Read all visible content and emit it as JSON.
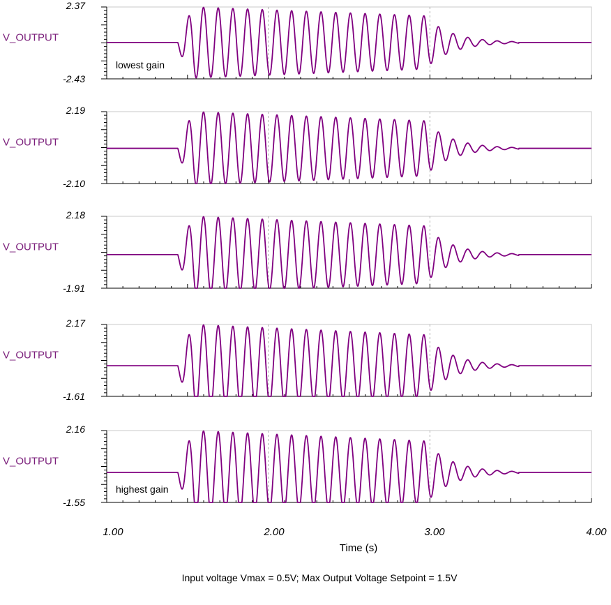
{
  "chart_data": {
    "type": "line",
    "xlabel": "Time (s)",
    "xlim": [
      1.0,
      4.0
    ],
    "x_ticks": [
      "1.00",
      "2.00",
      "3.00",
      "4.00"
    ],
    "grid": "vertical dashed at 2.00 and 3.00",
    "line_color": "#800080",
    "panels": [
      {
        "ylabel": "V_OUTPUT",
        "ymax": 2.37,
        "ymin": -2.43,
        "ymax_label": "2.37",
        "ymin_label": "-2.43",
        "annotation": "lowest gain",
        "burst_start": 1.44,
        "burst_end": 2.97,
        "peak_amplitude": 2.37,
        "settle_by": 3.45
      },
      {
        "ylabel": "V_OUTPUT",
        "ymax": 2.19,
        "ymin": -2.1,
        "ymax_label": "2.19",
        "ymin_label": "-2.10",
        "annotation": "",
        "burst_start": 1.44,
        "burst_end": 2.97,
        "peak_amplitude": 2.19,
        "settle_by": 3.45
      },
      {
        "ylabel": "V_OUTPUT",
        "ymax": 2.18,
        "ymin": -1.91,
        "ymax_label": "2.18",
        "ymin_label": "-1.91",
        "annotation": "",
        "burst_start": 1.44,
        "burst_end": 2.97,
        "peak_amplitude": 2.18,
        "settle_by": 3.45
      },
      {
        "ylabel": "V_OUTPUT",
        "ymax": 2.17,
        "ymin": -1.61,
        "ymax_label": "2.17",
        "ymin_label": "-1.61",
        "annotation": "",
        "burst_start": 1.44,
        "burst_end": 2.97,
        "peak_amplitude": 2.17,
        "settle_by": 3.45
      },
      {
        "ylabel": "V_OUTPUT",
        "ymax": 2.16,
        "ymin": -1.55,
        "ymax_label": "2.16",
        "ymin_label": "-1.55",
        "annotation": "highest gain",
        "burst_start": 1.44,
        "burst_end": 2.97,
        "peak_amplitude": 2.16,
        "settle_by": 3.45
      }
    ],
    "footnote": "Input voltage Vmax = 0.5V;    Max Output Voltage Setpoint = 1.5V"
  }
}
